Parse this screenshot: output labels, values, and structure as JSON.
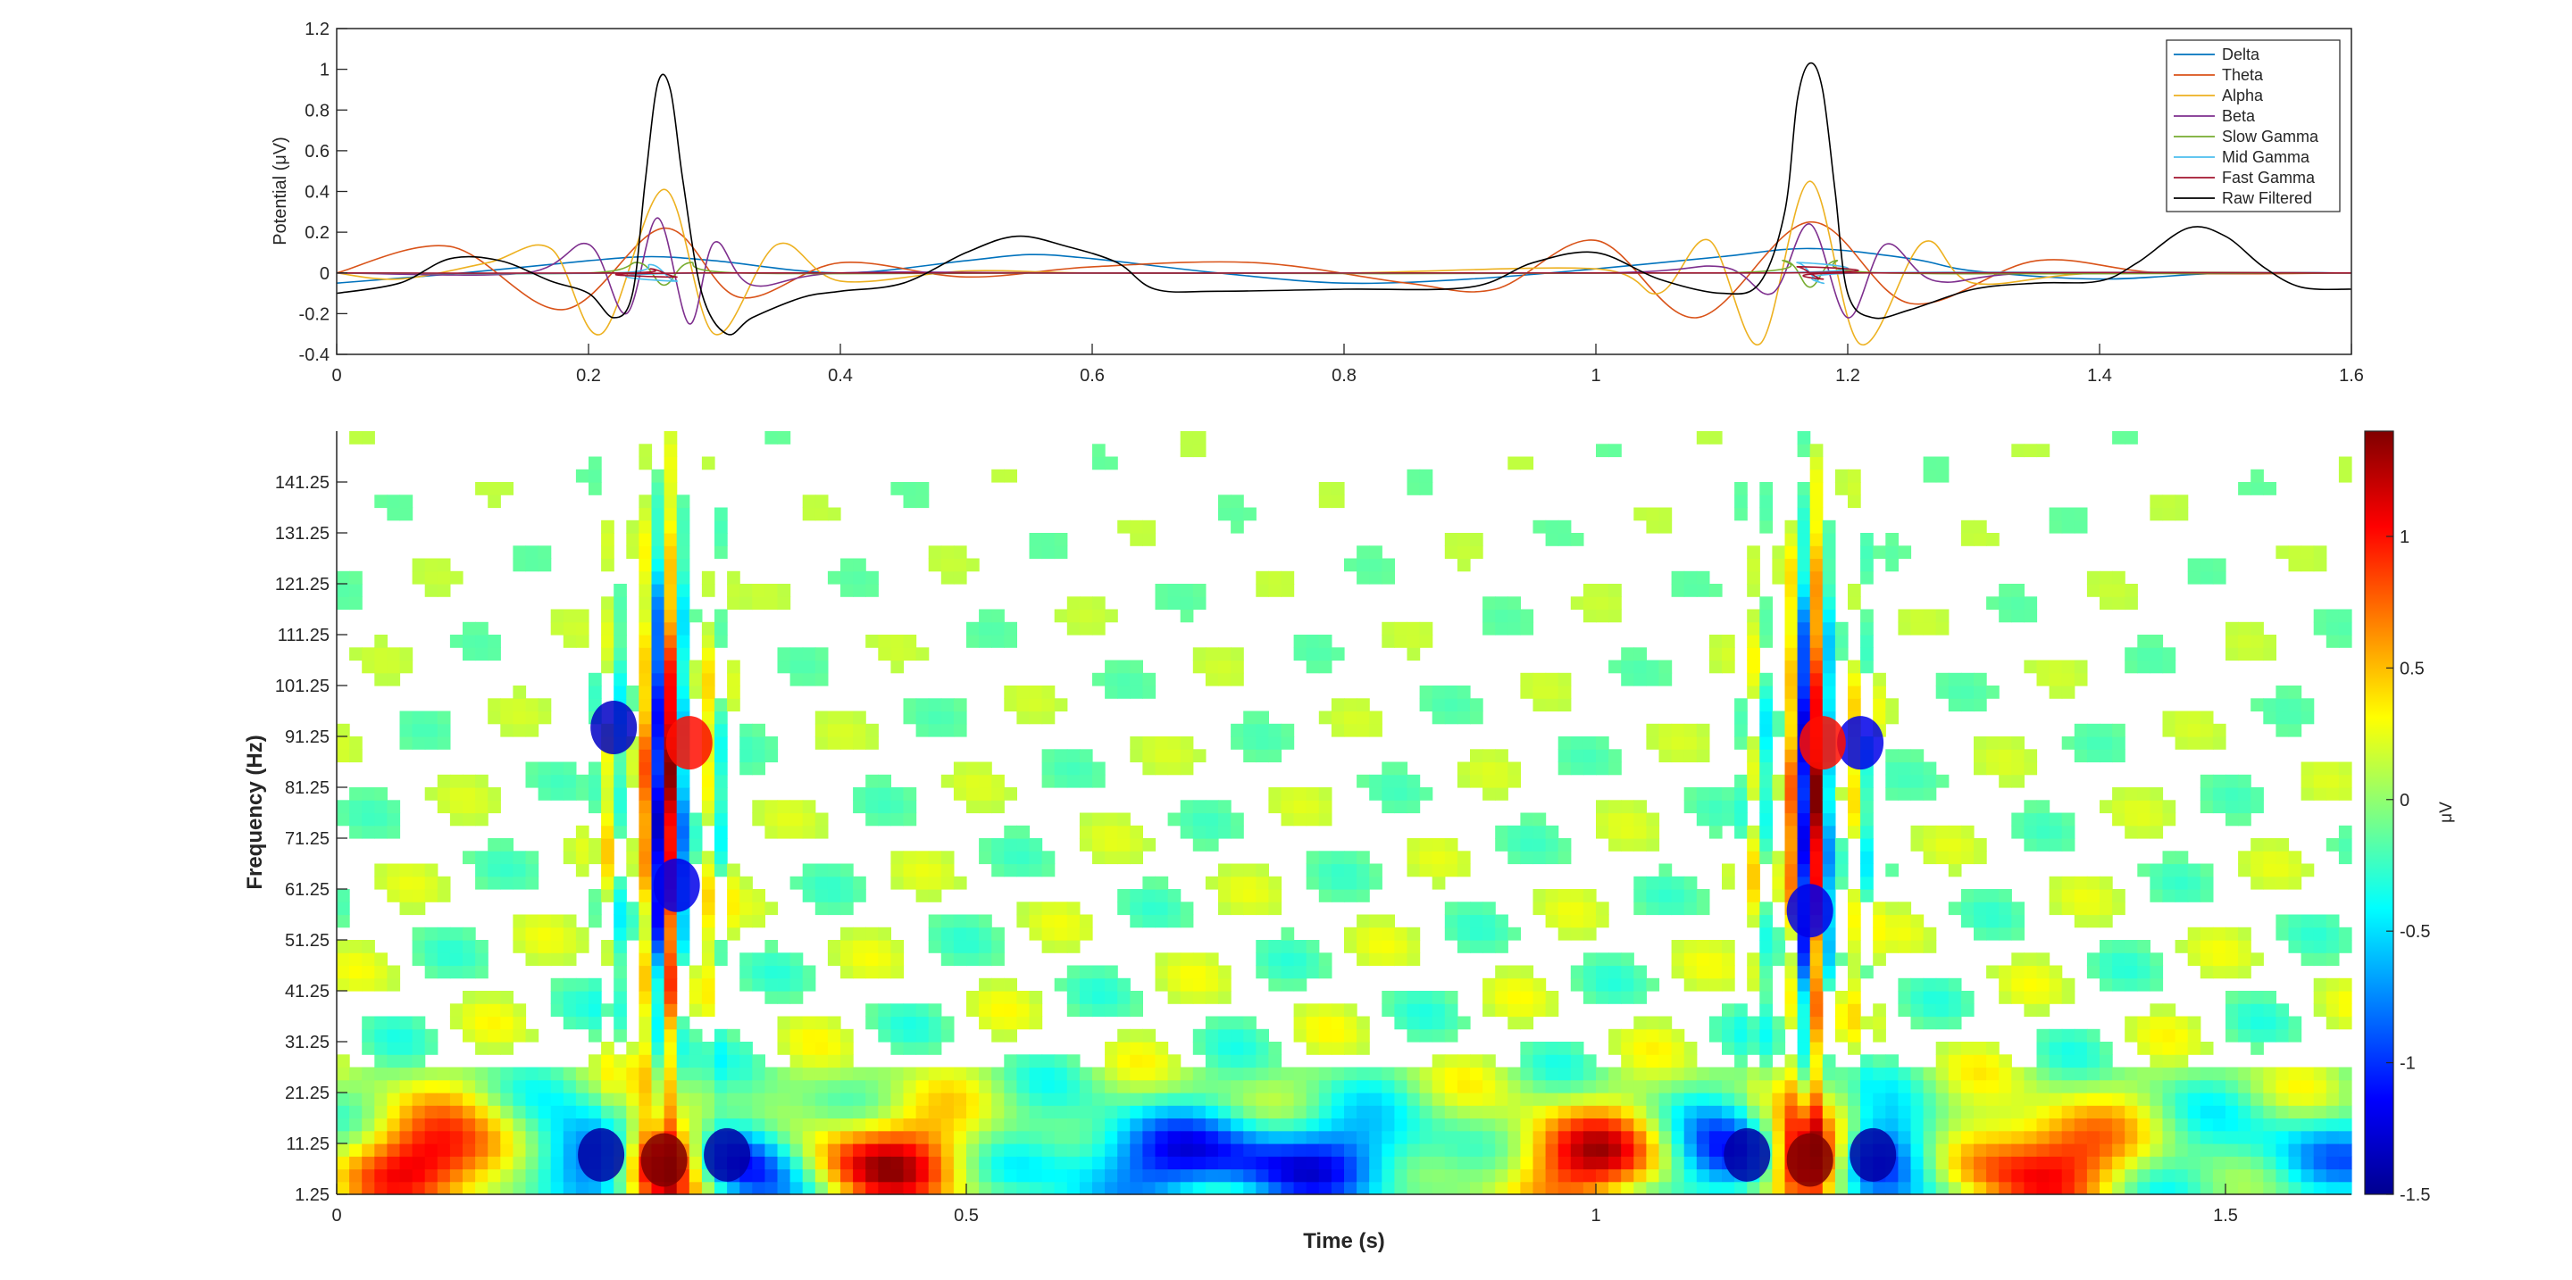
{
  "chart_data": [
    {
      "type": "line",
      "title": "",
      "xlabel": "",
      "ylabel": "Potential (μV)",
      "xlim": [
        0,
        1.6
      ],
      "ylim": [
        -0.4,
        1.2
      ],
      "xticks": [
        "0",
        "0.2",
        "0.4",
        "0.6",
        "0.8",
        "1",
        "1.2",
        "1.4",
        "1.6"
      ],
      "yticks": [
        "-0.4",
        "-0.2",
        "0",
        "0.2",
        "0.4",
        "0.6",
        "0.8",
        "1",
        "1.2"
      ],
      "legend_position": "top-right",
      "grid": false,
      "series": [
        {
          "name": "Delta",
          "color": "#0072BD",
          "x": [
            0,
            0.1,
            0.2,
            0.25,
            0.3,
            0.4,
            0.5,
            0.55,
            0.6,
            0.7,
            0.8,
            0.9,
            1.0,
            1.1,
            1.17,
            1.25,
            1.3,
            1.4,
            1.5,
            1.6
          ],
          "y": [
            -0.05,
            0.0,
            0.06,
            0.08,
            0.06,
            0.0,
            0.06,
            0.09,
            0.07,
            0.0,
            -0.05,
            -0.03,
            0.02,
            0.08,
            0.12,
            0.07,
            0.01,
            -0.03,
            0.0,
            0.0
          ]
        },
        {
          "name": "Theta",
          "color": "#D95319",
          "x": [
            0,
            0.09,
            0.18,
            0.26,
            0.32,
            0.4,
            0.5,
            0.6,
            0.73,
            0.85,
            0.92,
            1.0,
            1.08,
            1.17,
            1.25,
            1.35,
            1.45,
            1.6
          ],
          "y": [
            0.0,
            0.13,
            -0.18,
            0.22,
            -0.12,
            0.05,
            -0.02,
            0.03,
            0.05,
            -0.05,
            -0.08,
            0.16,
            -0.22,
            0.25,
            -0.15,
            0.06,
            0.0,
            0.0
          ]
        },
        {
          "name": "Alpha",
          "color": "#EDB120",
          "x": [
            0,
            0.05,
            0.12,
            0.17,
            0.21,
            0.26,
            0.3,
            0.35,
            0.4,
            0.5,
            0.6,
            0.8,
            1.0,
            1.05,
            1.09,
            1.13,
            1.17,
            1.21,
            1.26,
            1.3,
            1.4,
            1.6
          ],
          "y": [
            0.0,
            -0.03,
            0.05,
            0.12,
            -0.3,
            0.41,
            -0.3,
            0.14,
            -0.04,
            0.01,
            0.0,
            0.0,
            0.02,
            -0.1,
            0.16,
            -0.35,
            0.45,
            -0.35,
            0.15,
            -0.05,
            0.0,
            0.0
          ]
        },
        {
          "name": "Beta",
          "color": "#7E2F8E",
          "x": [
            0,
            0.15,
            0.2,
            0.23,
            0.255,
            0.28,
            0.3,
            0.33,
            0.4,
            0.6,
            1.0,
            1.1,
            1.14,
            1.17,
            1.2,
            1.23,
            1.27,
            1.35,
            1.6
          ],
          "y": [
            0.0,
            0.0,
            0.14,
            -0.2,
            0.27,
            -0.25,
            0.15,
            -0.06,
            0.0,
            0.0,
            0.0,
            0.03,
            -0.1,
            0.24,
            -0.22,
            0.14,
            -0.04,
            0.0,
            0.0
          ]
        },
        {
          "name": "Slow Gamma",
          "color": "#77AC30",
          "x": [
            0,
            0.2,
            0.24,
            0.26,
            0.28,
            0.32,
            0.6,
            1.1,
            1.15,
            1.17,
            1.19,
            1.23,
            1.6
          ],
          "y": [
            0.0,
            0.0,
            0.05,
            -0.06,
            0.05,
            0.0,
            0.0,
            0.0,
            0.06,
            -0.07,
            0.06,
            0.0,
            0.0
          ]
        },
        {
          "name": "Mid Gamma",
          "color": "#4DBEEE",
          "x": [
            0,
            0.22,
            0.25,
            0.27,
            0.3,
            1.13,
            1.16,
            1.18,
            1.21,
            1.6
          ],
          "y": [
            0.0,
            0.0,
            0.04,
            -0.04,
            0.0,
            0.0,
            0.05,
            -0.05,
            0.0,
            0.0
          ]
        },
        {
          "name": "Fast Gamma",
          "color": "#A2142F",
          "x": [
            0,
            0.23,
            0.25,
            0.27,
            0.29,
            1.14,
            1.16,
            1.18,
            1.2,
            1.6
          ],
          "y": [
            0.0,
            0.0,
            0.02,
            -0.02,
            0.0,
            0.0,
            0.03,
            -0.03,
            0.0,
            0.0
          ]
        },
        {
          "name": "Raw Filtered",
          "color": "#000000",
          "x": [
            0,
            0.05,
            0.09,
            0.13,
            0.17,
            0.2,
            0.22,
            0.235,
            0.245,
            0.255,
            0.265,
            0.275,
            0.29,
            0.31,
            0.33,
            0.37,
            0.4,
            0.45,
            0.5,
            0.54,
            0.58,
            0.62,
            0.65,
            0.7,
            0.8,
            0.9,
            0.95,
            1.0,
            1.05,
            1.1,
            1.13,
            1.15,
            1.16,
            1.17,
            1.18,
            1.19,
            1.2,
            1.22,
            1.25,
            1.3,
            1.35,
            1.4,
            1.43,
            1.47,
            1.5,
            1.53,
            1.56,
            1.6
          ],
          "y": [
            -0.1,
            -0.05,
            0.07,
            0.06,
            -0.04,
            -0.1,
            -0.22,
            -0.1,
            0.45,
            0.93,
            0.9,
            0.45,
            -0.1,
            -0.3,
            -0.22,
            -0.12,
            -0.09,
            -0.05,
            0.1,
            0.18,
            0.13,
            0.05,
            -0.08,
            -0.09,
            -0.08,
            -0.07,
            0.05,
            0.1,
            -0.03,
            -0.1,
            -0.05,
            0.3,
            0.85,
            1.03,
            0.9,
            0.4,
            -0.1,
            -0.22,
            -0.18,
            -0.08,
            -0.05,
            -0.04,
            0.05,
            0.22,
            0.18,
            0.03,
            -0.07,
            -0.08
          ]
        }
      ]
    },
    {
      "type": "heatmap",
      "title": "",
      "xlabel": "Time (s)",
      "ylabel": "Frequency (Hz)",
      "xlim": [
        0,
        1.6
      ],
      "ylim": [
        1.25,
        151.25
      ],
      "xticks": [
        "0",
        "0.5",
        "1",
        "1.5"
      ],
      "yticks": [
        "1.25",
        "11.25",
        "21.25",
        "31.25",
        "41.25",
        "51.25",
        "61.25",
        "71.25",
        "81.25",
        "91.25",
        "101.25",
        "111.25",
        "121.25",
        "131.25",
        "141.25"
      ],
      "colorbar": {
        "label": "μV",
        "limits": [
          -1.5,
          1.4
        ],
        "ticks": [
          "-1.5",
          "-1",
          "-0.5",
          "0",
          "0.5",
          "1"
        ],
        "colormap": "jet"
      },
      "hotspots": [
        {
          "t": 0.26,
          "f": 8,
          "value": 1.4
        },
        {
          "t": 1.17,
          "f": 8,
          "value": 1.4
        },
        {
          "t": 0.21,
          "f": 9,
          "value": -1.4
        },
        {
          "t": 0.31,
          "f": 9,
          "value": -1.4
        },
        {
          "t": 1.12,
          "f": 9,
          "value": -1.4
        },
        {
          "t": 1.22,
          "f": 9,
          "value": -1.4
        },
        {
          "t": 0.22,
          "f": 93,
          "value": -1.3
        },
        {
          "t": 0.27,
          "f": 62,
          "value": -1.2
        },
        {
          "t": 1.17,
          "f": 57,
          "value": -1.2
        },
        {
          "t": 1.21,
          "f": 90,
          "value": -1.2
        },
        {
          "t": 0.28,
          "f": 90,
          "value": 1.0
        },
        {
          "t": 1.18,
          "f": 90,
          "value": 1.0
        }
      ]
    }
  ]
}
